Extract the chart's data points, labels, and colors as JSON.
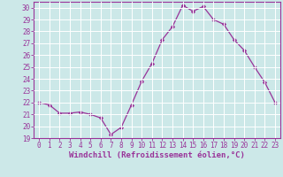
{
  "x": [
    0,
    1,
    2,
    3,
    4,
    5,
    6,
    7,
    8,
    9,
    10,
    11,
    12,
    13,
    14,
    15,
    16,
    17,
    18,
    19,
    20,
    21,
    22,
    23
  ],
  "y": [
    22,
    21.8,
    21.1,
    21.1,
    21.2,
    21.0,
    20.7,
    19.3,
    19.9,
    21.8,
    23.8,
    25.3,
    27.3,
    28.4,
    30.2,
    29.7,
    30.1,
    29.0,
    28.6,
    27.3,
    26.4,
    25.0,
    23.7,
    22.0
  ],
  "line_color": "#993399",
  "marker": "D",
  "marker_size": 2.2,
  "bg_color": "#cce8e8",
  "grid_color": "#ffffff",
  "xlabel": "Windchill (Refroidissement éolien,°C)",
  "xlabel_color": "#993399",
  "tick_color": "#993399",
  "spine_color": "#993399",
  "ylim": [
    19,
    30.5
  ],
  "xlim": [
    -0.5,
    23.5
  ],
  "yticks": [
    19,
    20,
    21,
    22,
    23,
    24,
    25,
    26,
    27,
    28,
    29,
    30
  ],
  "xticks": [
    0,
    1,
    2,
    3,
    4,
    5,
    6,
    7,
    8,
    9,
    10,
    11,
    12,
    13,
    14,
    15,
    16,
    17,
    18,
    19,
    20,
    21,
    22,
    23
  ],
  "tick_fontsize": 5.5,
  "xlabel_fontsize": 6.5
}
